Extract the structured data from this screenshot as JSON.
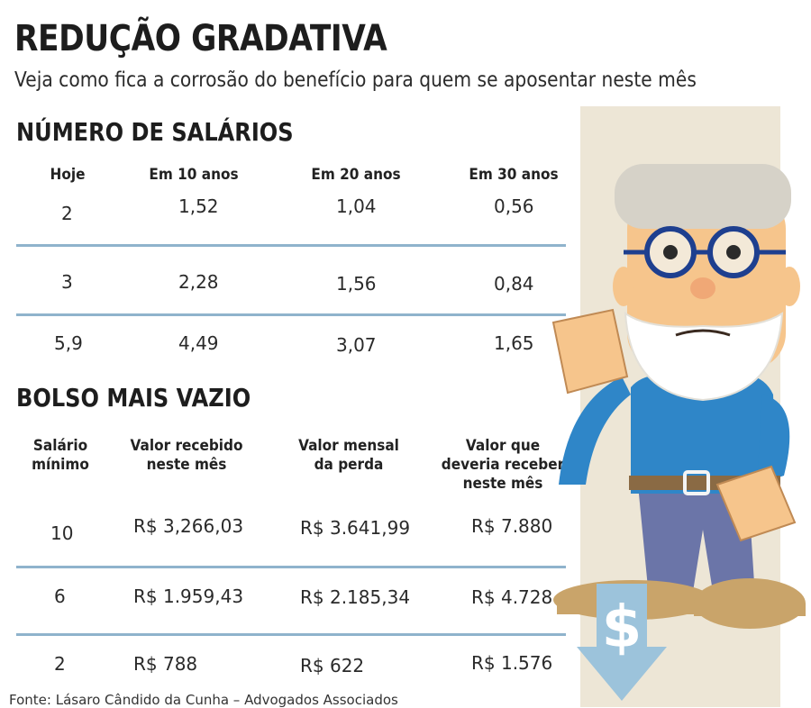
{
  "title": "REDUÇÃO GRADATIVA",
  "subtitle": "Veja como fica a corrosão do benefício para quem se aposentar neste mês",
  "section1": {
    "title": "NÚMERO DE SALÁRIOS",
    "headers": [
      "Hoje",
      "Em 10 anos",
      "Em 20 anos",
      "Em 30 anos"
    ],
    "rows": [
      [
        "2",
        "1,52",
        "1,04",
        "0,56"
      ],
      [
        "3",
        "2,28",
        "1,56",
        "0,84"
      ],
      [
        "5,9",
        "4,49",
        "3,07",
        "1,65"
      ]
    ]
  },
  "section2": {
    "title": "BOLSO MAIS VAZIO",
    "headers": [
      [
        "Salário",
        "mínimo"
      ],
      [
        "Valor recebido",
        "neste mês"
      ],
      [
        "Valor mensal",
        "da perda"
      ],
      [
        "Valor que",
        "deveria receber",
        "neste mês"
      ]
    ],
    "rows": [
      [
        "10",
        "R$ 3,266,03",
        "R$ 3.641,99",
        "R$ 7.880"
      ],
      [
        "6",
        "R$ 1.959,43",
        "R$ 2.185,34",
        "R$ 4.728"
      ],
      [
        "2",
        "R$ 788",
        "R$ 622",
        "R$ 1.576"
      ]
    ]
  },
  "source": "Fonte: Lásaro Cândido da Cunha – Advogados Associados",
  "illustration": {
    "symbol": "$",
    "colors": {
      "panel": "#ede6d6",
      "arrow": "#9cc3db",
      "shirt": "#2f86c8",
      "pants": "#6b75a8",
      "skin": "#f6c58c",
      "hair": "#d6d2c8",
      "glasses": "#1e3f8f",
      "rule": "#8fb3cc"
    }
  }
}
